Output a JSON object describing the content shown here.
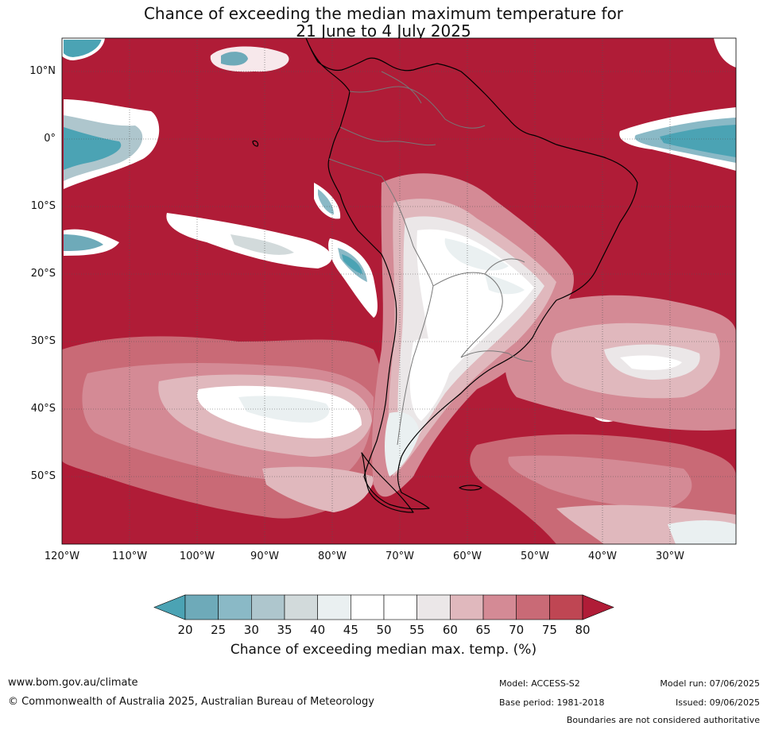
{
  "title_line1": "Chance of exceeding the median maximum temperature for",
  "title_line2": "21 June to 4 July 2025",
  "lat_labels": [
    "10°N",
    "0°",
    "10°S",
    "20°S",
    "30°S",
    "40°S",
    "50°S"
  ],
  "lon_labels": [
    "120°W",
    "110°W",
    "100°W",
    "90°W",
    "80°W",
    "70°W",
    "60°W",
    "50°W",
    "40°W",
    "30°W"
  ],
  "colorbar": {
    "ticks": [
      "20",
      "25",
      "30",
      "35",
      "40",
      "45",
      "50",
      "55",
      "60",
      "65",
      "70",
      "75",
      "80"
    ],
    "colors": [
      "#4ba3b4",
      "#6eaab9",
      "#8ab9c6",
      "#aec6cd",
      "#d2dadb",
      "#eaf0f1",
      "#ffffff",
      "#ffffff",
      "#ebe7e8",
      "#e0b8bd",
      "#d48a95",
      "#c96a76",
      "#bf4653",
      "#b01c37"
    ],
    "title": "Chance of exceeding median max. temp. (%)"
  },
  "footer": {
    "website": "www.bom.gov.au/climate",
    "copyright": "© Commonwealth of Australia 2025, Australian Bureau of Meteorology",
    "model": "Model: ACCESS-S2",
    "model_run": "Model run: 07/06/2025",
    "base_period": "Base period: 1981-2018",
    "issued": "Issued: 09/06/2025",
    "disclaimer": "Boundaries are not considered authoritative"
  }
}
